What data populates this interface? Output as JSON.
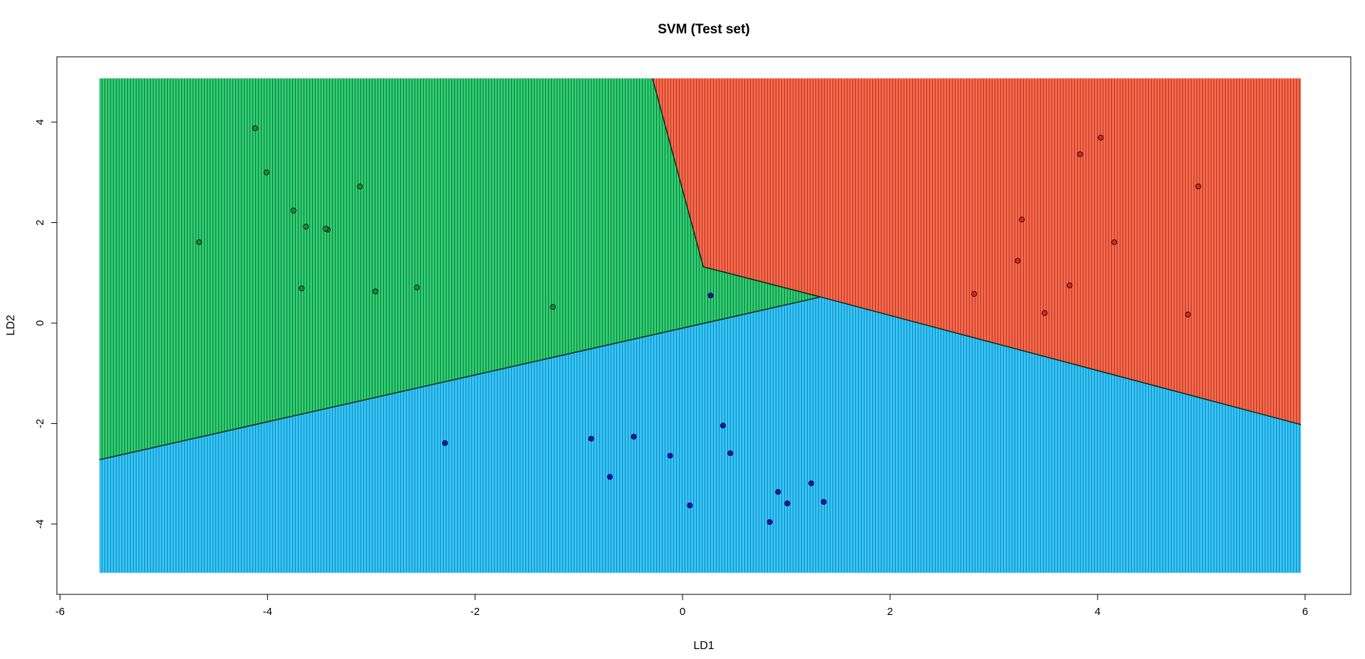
{
  "chart_data": {
    "type": "scatter",
    "title": "SVM (Test set)",
    "xlabel": "LD1",
    "ylabel": "LD2",
    "xlim": [
      -6.03,
      6.44
    ],
    "ylim": [
      -5.4,
      5.3
    ],
    "grid_region": {
      "x": [
        -5.62,
        5.96
      ],
      "y": [
        -4.97,
        4.87
      ]
    },
    "xticks": [
      -6,
      -4,
      -2,
      0,
      2,
      4,
      6
    ],
    "yticks": [
      -4,
      -2,
      0,
      2,
      4
    ],
    "xtick_labels": [
      "-6",
      "-4",
      "-2",
      "0",
      "2",
      "4",
      "6"
    ],
    "ytick_labels": [
      "-4",
      "-2",
      "0",
      "2",
      "4"
    ],
    "grid": false,
    "legend": "none",
    "decision_regions": [
      {
        "class": "green",
        "color": "#2ecc71",
        "polygon": [
          [
            -5.62,
            4.87
          ],
          [
            -0.29,
            4.87
          ],
          [
            0.2,
            1.12
          ],
          [
            1.33,
            0.52
          ],
          [
            -5.62,
            -2.72
          ]
        ]
      },
      {
        "class": "red",
        "color": "#f15a3c",
        "polygon": [
          [
            -0.29,
            4.87
          ],
          [
            5.96,
            4.87
          ],
          [
            5.96,
            -2.02
          ],
          [
            1.33,
            0.52
          ],
          [
            0.2,
            1.12
          ]
        ]
      },
      {
        "class": "blue",
        "color": "#29b6f0",
        "polygon": [
          [
            -5.62,
            -2.72
          ],
          [
            1.33,
            0.52
          ],
          [
            5.96,
            -2.02
          ],
          [
            5.96,
            -4.97
          ],
          [
            -5.62,
            -4.97
          ]
        ]
      }
    ],
    "series": [
      {
        "color": "#1e8a3c",
        "points": [
          [
            -4.66,
            1.61
          ],
          [
            -4.12,
            3.88
          ],
          [
            -4.01,
            3.0
          ],
          [
            -3.75,
            2.24
          ],
          [
            -3.63,
            1.92
          ],
          [
            -3.42,
            1.86
          ],
          [
            -3.44,
            1.88
          ],
          [
            -3.67,
            0.69
          ],
          [
            -3.11,
            2.72
          ],
          [
            -2.96,
            0.63
          ],
          [
            -2.56,
            0.71
          ],
          [
            -1.25,
            0.32
          ]
        ]
      },
      {
        "color": "#d42a1c",
        "points": [
          [
            3.83,
            3.36
          ],
          [
            4.03,
            3.69
          ],
          [
            3.27,
            2.06
          ],
          [
            3.23,
            1.24
          ],
          [
            4.16,
            1.61
          ],
          [
            4.97,
            2.72
          ],
          [
            2.81,
            0.58
          ],
          [
            3.73,
            0.75
          ],
          [
            3.49,
            0.2
          ],
          [
            4.87,
            0.17
          ]
        ]
      },
      {
        "color": "#1515c8",
        "points": [
          [
            0.27,
            0.55
          ],
          [
            -2.29,
            -2.39
          ],
          [
            -0.88,
            -2.3
          ],
          [
            -0.47,
            -2.26
          ],
          [
            0.39,
            -2.04
          ],
          [
            0.46,
            -2.59
          ],
          [
            -0.12,
            -2.64
          ],
          [
            -0.7,
            -3.06
          ],
          [
            1.24,
            -3.19
          ],
          [
            0.92,
            -3.36
          ],
          [
            1.36,
            -3.56
          ],
          [
            1.01,
            -3.59
          ],
          [
            0.07,
            -3.63
          ],
          [
            0.84,
            -3.96
          ]
        ]
      }
    ]
  }
}
